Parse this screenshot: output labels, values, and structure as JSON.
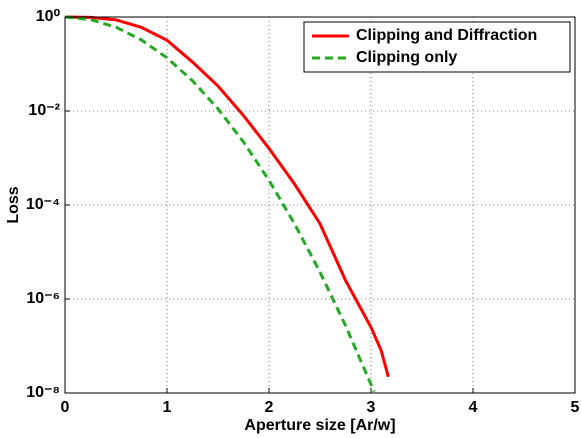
{
  "chart_data": {
    "type": "line",
    "xlabel": "Aperture size [Ar/w]",
    "ylabel": "Loss",
    "xlim": [
      0,
      5
    ],
    "xticks": [
      0,
      1,
      2,
      3,
      4,
      5
    ],
    "ylim": [
      1e-08,
      1
    ],
    "yscale": "log",
    "yticks": [
      {
        "value": 1,
        "label": "10⁰"
      },
      {
        "value": 0.01,
        "label": "10⁻²"
      },
      {
        "value": 0.0001,
        "label": "10⁻⁴"
      },
      {
        "value": 1e-06,
        "label": "10⁻⁶"
      },
      {
        "value": 1e-08,
        "label": "10⁻⁸"
      }
    ],
    "grid": true,
    "legend": "upper right",
    "series": [
      {
        "name": "Clipping and Diffraction",
        "color": "#ff0000",
        "dash": "solid",
        "x": [
          0,
          0.25,
          0.5,
          0.75,
          1,
          1.25,
          1.5,
          1.75,
          2,
          2.25,
          2.5,
          2.75,
          3,
          3.1,
          3.17
        ],
        "values": [
          1,
          0.98,
          0.87,
          0.6,
          0.32,
          0.11,
          0.034,
          0.008,
          0.0016,
          0.00028,
          4e-05,
          2.5e-06,
          2.5e-07,
          8e-08,
          2.2e-08
        ]
      },
      {
        "name": "Clipping only",
        "color": "#22aa22",
        "dash": "dashed",
        "x": [
          0,
          0.25,
          0.5,
          0.75,
          1,
          1.25,
          1.5,
          1.75,
          2,
          2.25,
          2.5,
          2.75,
          3,
          3.03
        ],
        "values": [
          1,
          0.8825,
          0.6065,
          0.3247,
          0.1353,
          0.0439,
          0.0111,
          0.00219,
          0.000335,
          3.98e-05,
          3.73e-06,
          2.72e-07,
          1.52e-08,
          1.07e-08
        ]
      }
    ]
  }
}
